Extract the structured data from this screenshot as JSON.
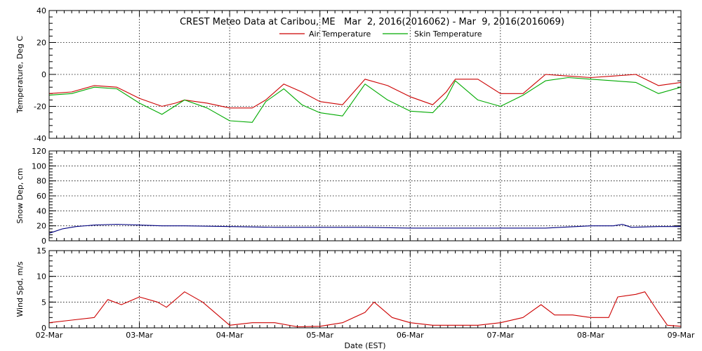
{
  "chart_data": {
    "type": "line",
    "title": "CREST Meteo Data at Caribou, ME   Mar  2, 2016(2016062) - Mar  9, 2016(2016069)",
    "xlabel": "Date (EST)",
    "x_ticks": [
      "02-Mar",
      "03-Mar",
      "04-Mar",
      "05-Mar",
      "06-Mar",
      "07-Mar",
      "08-Mar",
      "09-Mar"
    ],
    "xlim": [
      0,
      7
    ],
    "grid": true,
    "legend_position": "top-center",
    "panels": [
      {
        "id": "temperature",
        "ylabel": "Temperature, Deg C",
        "ylim": [
          -40,
          40
        ],
        "yticks": [
          -40,
          -20,
          0,
          20,
          40
        ],
        "series": [
          {
            "name": "Air Temperature",
            "color": "#cc0000",
            "points": [
              [
                0,
                -12
              ],
              [
                0.25,
                -11
              ],
              [
                0.5,
                -7
              ],
              [
                0.75,
                -8
              ],
              [
                1.0,
                -15
              ],
              [
                1.25,
                -20
              ],
              [
                1.4,
                -18
              ],
              [
                1.5,
                -16
              ],
              [
                1.75,
                -18
              ],
              [
                2.0,
                -21
              ],
              [
                2.25,
                -21
              ],
              [
                2.4,
                -16
              ],
              [
                2.6,
                -6
              ],
              [
                2.8,
                -11
              ],
              [
                3.0,
                -17
              ],
              [
                3.25,
                -19
              ],
              [
                3.5,
                -3
              ],
              [
                3.75,
                -7
              ],
              [
                4.0,
                -14
              ],
              [
                4.25,
                -19
              ],
              [
                4.4,
                -11
              ],
              [
                4.5,
                -3
              ],
              [
                4.75,
                -3
              ],
              [
                5.0,
                -12
              ],
              [
                5.25,
                -12
              ],
              [
                5.5,
                0
              ],
              [
                5.75,
                -1
              ],
              [
                6.0,
                -2
              ],
              [
                6.25,
                -1
              ],
              [
                6.5,
                0
              ],
              [
                6.75,
                -7
              ],
              [
                7.0,
                -5
              ]
            ]
          },
          {
            "name": "Skin Temperature",
            "color": "#00aa00",
            "points": [
              [
                0,
                -13
              ],
              [
                0.25,
                -12
              ],
              [
                0.5,
                -8
              ],
              [
                0.75,
                -9
              ],
              [
                1.0,
                -18
              ],
              [
                1.25,
                -25
              ],
              [
                1.5,
                -16
              ],
              [
                1.75,
                -21
              ],
              [
                2.0,
                -29
              ],
              [
                2.25,
                -30
              ],
              [
                2.4,
                -17
              ],
              [
                2.6,
                -9
              ],
              [
                2.8,
                -19
              ],
              [
                3.0,
                -24
              ],
              [
                3.25,
                -26
              ],
              [
                3.5,
                -6
              ],
              [
                3.75,
                -16
              ],
              [
                4.0,
                -23
              ],
              [
                4.25,
                -24
              ],
              [
                4.4,
                -15
              ],
              [
                4.5,
                -4
              ],
              [
                4.75,
                -16
              ],
              [
                5.0,
                -20
              ],
              [
                5.25,
                -13
              ],
              [
                5.5,
                -4
              ],
              [
                5.75,
                -2
              ],
              [
                6.0,
                -3
              ],
              [
                6.25,
                -4
              ],
              [
                6.5,
                -5
              ],
              [
                6.75,
                -12
              ],
              [
                7.0,
                -8
              ]
            ]
          }
        ]
      },
      {
        "id": "snow",
        "ylabel": "Snow Dep, cm",
        "ylim": [
          0,
          120
        ],
        "yticks": [
          0,
          20,
          40,
          60,
          80,
          100,
          120
        ],
        "series": [
          {
            "name": "",
            "color": "#000080",
            "points": [
              [
                0,
                10
              ],
              [
                0.05,
                12
              ],
              [
                0.15,
                16
              ],
              [
                0.3,
                19
              ],
              [
                0.5,
                21
              ],
              [
                0.75,
                22
              ],
              [
                1.0,
                21
              ],
              [
                1.25,
                20
              ],
              [
                1.5,
                20
              ],
              [
                2.0,
                19
              ],
              [
                2.5,
                18
              ],
              [
                3.0,
                18
              ],
              [
                3.5,
                18
              ],
              [
                4.0,
                17
              ],
              [
                4.5,
                17
              ],
              [
                5.0,
                17
              ],
              [
                5.5,
                17
              ],
              [
                6.0,
                20
              ],
              [
                6.25,
                20
              ],
              [
                6.35,
                22
              ],
              [
                6.45,
                18
              ],
              [
                6.75,
                19
              ],
              [
                7.0,
                19
              ]
            ]
          }
        ]
      },
      {
        "id": "wind",
        "ylabel": "Wind Spd, m/s",
        "ylim": [
          0,
          15
        ],
        "yticks": [
          0,
          5,
          10,
          15
        ],
        "series": [
          {
            "name": "",
            "color": "#cc0000",
            "points": [
              [
                0,
                1
              ],
              [
                0.25,
                1.5
              ],
              [
                0.5,
                2
              ],
              [
                0.65,
                5.5
              ],
              [
                0.8,
                4.5
              ],
              [
                1.0,
                6
              ],
              [
                1.2,
                5
              ],
              [
                1.3,
                4
              ],
              [
                1.5,
                7
              ],
              [
                1.7,
                5
              ],
              [
                1.9,
                2
              ],
              [
                2.0,
                0.5
              ],
              [
                2.25,
                1
              ],
              [
                2.5,
                1
              ],
              [
                2.75,
                0.2
              ],
              [
                3.0,
                0.3
              ],
              [
                3.25,
                1
              ],
              [
                3.5,
                3
              ],
              [
                3.6,
                5
              ],
              [
                3.8,
                2
              ],
              [
                4.0,
                1
              ],
              [
                4.25,
                0.5
              ],
              [
                4.5,
                0.5
              ],
              [
                4.75,
                0.5
              ],
              [
                5.0,
                1
              ],
              [
                5.25,
                2
              ],
              [
                5.45,
                4.5
              ],
              [
                5.6,
                2.5
              ],
              [
                5.8,
                2.5
              ],
              [
                6.0,
                2
              ],
              [
                6.2,
                2
              ],
              [
                6.3,
                6
              ],
              [
                6.5,
                6.5
              ],
              [
                6.6,
                7
              ],
              [
                6.75,
                3
              ],
              [
                6.85,
                0.5
              ],
              [
                7.0,
                0.3
              ]
            ]
          }
        ]
      }
    ]
  }
}
